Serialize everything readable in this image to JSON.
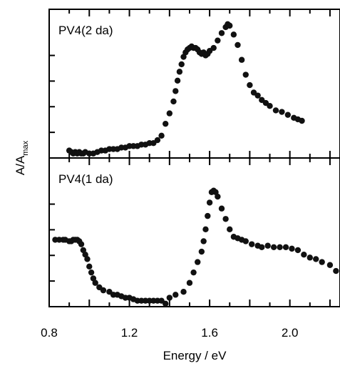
{
  "chart_data": [
    {
      "type": "scatter",
      "panel_label": "PV4(2 da)",
      "xlabel": "Energy / eV",
      "ylabel": "A/A",
      "ylabel_sub": "max",
      "xlim": [
        0.8,
        2.25
      ],
      "ylim": [
        0,
        1.0
      ],
      "x_ticks": [
        0.8,
        1.2,
        1.6,
        2.0
      ],
      "x_tick_labels": [
        "0.8",
        "1.2",
        "1.6",
        "2.0"
      ],
      "series": [
        {
          "points": [
            [
              0.9,
              0.05
            ],
            [
              0.91,
              0.04
            ],
            [
              0.92,
              0.03
            ],
            [
              0.93,
              0.04
            ],
            [
              0.94,
              0.03
            ],
            [
              0.95,
              0.04
            ],
            [
              0.96,
              0.03
            ],
            [
              0.97,
              0.03
            ],
            [
              0.98,
              0.04
            ],
            [
              1.0,
              0.03
            ],
            [
              1.02,
              0.03
            ],
            [
              1.04,
              0.04
            ],
            [
              1.06,
              0.05
            ],
            [
              1.08,
              0.05
            ],
            [
              1.1,
              0.06
            ],
            [
              1.12,
              0.06
            ],
            [
              1.14,
              0.06
            ],
            [
              1.16,
              0.07
            ],
            [
              1.18,
              0.07
            ],
            [
              1.2,
              0.08
            ],
            [
              1.22,
              0.08
            ],
            [
              1.24,
              0.08
            ],
            [
              1.26,
              0.09
            ],
            [
              1.28,
              0.09
            ],
            [
              1.3,
              0.1
            ],
            [
              1.32,
              0.1
            ],
            [
              1.34,
              0.12
            ],
            [
              1.36,
              0.15
            ],
            [
              1.38,
              0.23
            ],
            [
              1.4,
              0.3
            ],
            [
              1.42,
              0.38
            ],
            [
              1.43,
              0.45
            ],
            [
              1.44,
              0.52
            ],
            [
              1.45,
              0.58
            ],
            [
              1.46,
              0.63
            ],
            [
              1.47,
              0.68
            ],
            [
              1.48,
              0.71
            ],
            [
              1.49,
              0.73
            ],
            [
              1.5,
              0.74
            ],
            [
              1.51,
              0.75
            ],
            [
              1.52,
              0.74
            ],
            [
              1.53,
              0.74
            ],
            [
              1.54,
              0.73
            ],
            [
              1.55,
              0.71
            ],
            [
              1.56,
              0.7
            ],
            [
              1.57,
              0.71
            ],
            [
              1.58,
              0.69
            ],
            [
              1.59,
              0.7
            ],
            [
              1.6,
              0.72
            ],
            [
              1.62,
              0.74
            ],
            [
              1.64,
              0.79
            ],
            [
              1.66,
              0.84
            ],
            [
              1.68,
              0.88
            ],
            [
              1.69,
              0.9
            ],
            [
              1.7,
              0.89
            ],
            [
              1.72,
              0.83
            ],
            [
              1.74,
              0.76
            ],
            [
              1.76,
              0.66
            ],
            [
              1.78,
              0.56
            ],
            [
              1.8,
              0.49
            ],
            [
              1.82,
              0.44
            ],
            [
              1.84,
              0.42
            ],
            [
              1.86,
              0.39
            ],
            [
              1.88,
              0.37
            ],
            [
              1.9,
              0.35
            ],
            [
              1.93,
              0.32
            ],
            [
              1.96,
              0.31
            ],
            [
              1.99,
              0.29
            ],
            [
              2.02,
              0.27
            ],
            [
              2.04,
              0.26
            ],
            [
              2.06,
              0.25
            ]
          ]
        }
      ]
    },
    {
      "type": "scatter",
      "panel_label": "PV4(1 da)",
      "xlabel": "Energy / eV",
      "xlim": [
        0.8,
        2.25
      ],
      "ylim": [
        0,
        1.0
      ],
      "series": [
        {
          "points": [
            [
              0.83,
              0.45
            ],
            [
              0.85,
              0.45
            ],
            [
              0.87,
              0.45
            ],
            [
              0.88,
              0.45
            ],
            [
              0.9,
              0.44
            ],
            [
              0.91,
              0.44
            ],
            [
              0.92,
              0.45
            ],
            [
              0.93,
              0.45
            ],
            [
              0.94,
              0.45
            ],
            [
              0.95,
              0.44
            ],
            [
              0.96,
              0.42
            ],
            [
              0.97,
              0.38
            ],
            [
              0.98,
              0.35
            ],
            [
              0.99,
              0.32
            ],
            [
              1.0,
              0.27
            ],
            [
              1.01,
              0.23
            ],
            [
              1.02,
              0.19
            ],
            [
              1.03,
              0.16
            ],
            [
              1.05,
              0.13
            ],
            [
              1.07,
              0.11
            ],
            [
              1.1,
              0.1
            ],
            [
              1.12,
              0.08
            ],
            [
              1.14,
              0.08
            ],
            [
              1.16,
              0.07
            ],
            [
              1.18,
              0.06
            ],
            [
              1.2,
              0.06
            ],
            [
              1.22,
              0.05
            ],
            [
              1.24,
              0.04
            ],
            [
              1.26,
              0.04
            ],
            [
              1.28,
              0.04
            ],
            [
              1.3,
              0.04
            ],
            [
              1.32,
              0.04
            ],
            [
              1.34,
              0.04
            ],
            [
              1.36,
              0.04
            ],
            [
              1.38,
              0.02
            ],
            [
              1.4,
              0.06
            ],
            [
              1.43,
              0.08
            ],
            [
              1.47,
              0.1
            ],
            [
              1.5,
              0.16
            ],
            [
              1.52,
              0.23
            ],
            [
              1.54,
              0.3
            ],
            [
              1.56,
              0.37
            ],
            [
              1.57,
              0.44
            ],
            [
              1.58,
              0.52
            ],
            [
              1.59,
              0.61
            ],
            [
              1.6,
              0.7
            ],
            [
              1.61,
              0.77
            ],
            [
              1.62,
              0.78
            ],
            [
              1.63,
              0.77
            ],
            [
              1.64,
              0.74
            ],
            [
              1.66,
              0.66
            ],
            [
              1.68,
              0.59
            ],
            [
              1.7,
              0.52
            ],
            [
              1.72,
              0.47
            ],
            [
              1.74,
              0.46
            ],
            [
              1.76,
              0.45
            ],
            [
              1.78,
              0.44
            ],
            [
              1.81,
              0.42
            ],
            [
              1.84,
              0.41
            ],
            [
              1.86,
              0.4
            ],
            [
              1.89,
              0.41
            ],
            [
              1.92,
              0.4
            ],
            [
              1.95,
              0.4
            ],
            [
              1.98,
              0.4
            ],
            [
              2.01,
              0.39
            ],
            [
              2.04,
              0.38
            ],
            [
              2.07,
              0.35
            ],
            [
              2.1,
              0.33
            ],
            [
              2.13,
              0.32
            ],
            [
              2.16,
              0.3
            ],
            [
              2.2,
              0.28
            ],
            [
              2.23,
              0.24
            ]
          ]
        }
      ]
    }
  ]
}
